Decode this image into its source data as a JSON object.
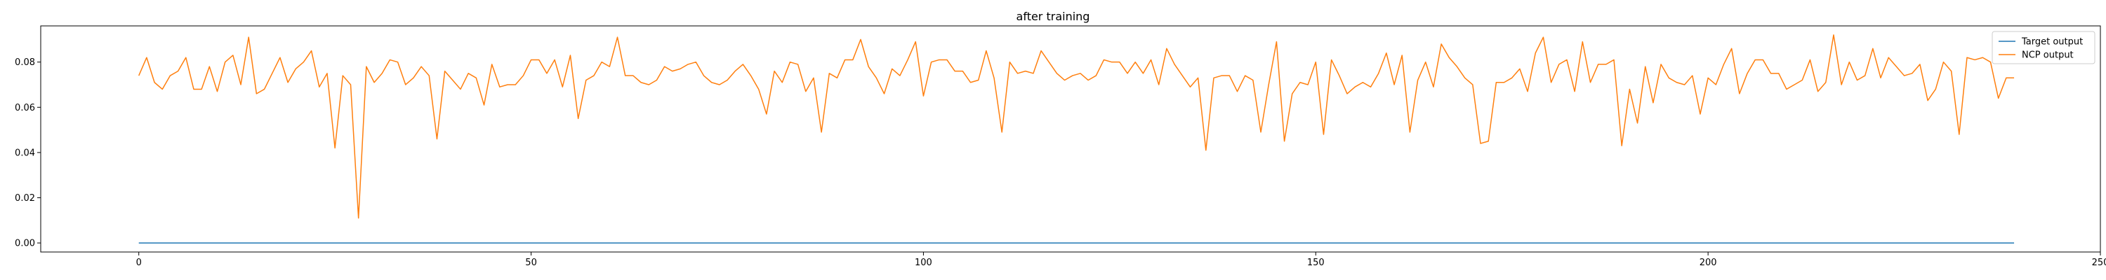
{
  "chart_data": {
    "type": "line",
    "title": "after training",
    "xlabel": "",
    "ylabel": "",
    "xlim": [
      -12.5,
      250
    ],
    "ylim": [
      -0.004,
      0.096
    ],
    "xticks": [
      0,
      50,
      100,
      150,
      200,
      250
    ],
    "yticks": [
      0.0,
      0.02,
      0.04,
      0.06,
      0.08
    ],
    "xtick_labels": [
      "0",
      "50",
      "100",
      "150",
      "200",
      "250"
    ],
    "ytick_labels": [
      "0.00",
      "0.02",
      "0.04",
      "0.06",
      "0.08"
    ],
    "grid": false,
    "legend_position": "top-right",
    "series": [
      {
        "name": "Target output",
        "color": "#1f77b4",
        "x": [
          0,
          239
        ],
        "y": [
          0.0,
          0.0
        ]
      },
      {
        "name": "NCP output",
        "color": "#ff7f0e",
        "y": [
          0.074,
          0.082,
          0.071,
          0.068,
          0.074,
          0.076,
          0.082,
          0.068,
          0.068,
          0.078,
          0.067,
          0.08,
          0.083,
          0.07,
          0.091,
          0.066,
          0.068,
          0.075,
          0.082,
          0.071,
          0.077,
          0.08,
          0.085,
          0.069,
          0.075,
          0.042,
          0.074,
          0.07,
          0.011,
          0.078,
          0.071,
          0.075,
          0.081,
          0.08,
          0.07,
          0.073,
          0.078,
          0.074,
          0.046,
          0.076,
          0.072,
          0.068,
          0.075,
          0.073,
          0.061,
          0.079,
          0.069,
          0.07,
          0.07,
          0.074,
          0.081,
          0.081,
          0.075,
          0.081,
          0.069,
          0.083,
          0.055,
          0.072,
          0.074,
          0.08,
          0.078,
          0.091,
          0.074,
          0.074,
          0.071,
          0.07,
          0.072,
          0.078,
          0.076,
          0.077,
          0.079,
          0.08,
          0.074,
          0.071,
          0.07,
          0.072,
          0.076,
          0.079,
          0.074,
          0.068,
          0.057,
          0.076,
          0.071,
          0.08,
          0.079,
          0.067,
          0.073,
          0.049,
          0.075,
          0.073,
          0.081,
          0.081,
          0.09,
          0.078,
          0.073,
          0.066,
          0.077,
          0.074,
          0.081,
          0.089,
          0.065,
          0.08,
          0.081,
          0.081,
          0.076,
          0.076,
          0.071,
          0.072,
          0.085,
          0.073,
          0.049,
          0.08,
          0.075,
          0.076,
          0.075,
          0.085,
          0.08,
          0.075,
          0.072,
          0.074,
          0.075,
          0.072,
          0.074,
          0.081,
          0.08,
          0.08,
          0.075,
          0.08,
          0.075,
          0.081,
          0.07,
          0.086,
          0.079,
          0.074,
          0.069,
          0.073,
          0.041,
          0.073,
          0.074,
          0.074,
          0.067,
          0.074,
          0.072,
          0.049,
          0.07,
          0.089,
          0.045,
          0.066,
          0.071,
          0.07,
          0.08,
          0.048,
          0.081,
          0.074,
          0.066,
          0.069,
          0.071,
          0.069,
          0.075,
          0.084,
          0.07,
          0.083,
          0.049,
          0.072,
          0.08,
          0.069,
          0.088,
          0.082,
          0.078,
          0.073,
          0.07,
          0.044,
          0.045,
          0.071,
          0.071,
          0.073,
          0.077,
          0.067,
          0.084,
          0.091,
          0.071,
          0.079,
          0.081,
          0.067,
          0.089,
          0.071,
          0.079,
          0.079,
          0.081,
          0.043,
          0.068,
          0.053,
          0.078,
          0.062,
          0.079,
          0.073,
          0.071,
          0.07,
          0.074,
          0.057,
          0.073,
          0.07,
          0.079,
          0.086,
          0.066,
          0.075,
          0.081,
          0.081,
          0.075,
          0.075,
          0.068,
          0.07,
          0.072,
          0.081,
          0.067,
          0.071,
          0.092,
          0.07,
          0.08,
          0.072,
          0.074,
          0.086,
          0.073,
          0.082,
          0.078,
          0.074,
          0.075,
          0.079,
          0.063,
          0.068,
          0.08,
          0.076,
          0.048,
          0.082,
          0.081,
          0.082,
          0.08,
          0.064,
          0.073,
          0.073
        ]
      }
    ]
  }
}
